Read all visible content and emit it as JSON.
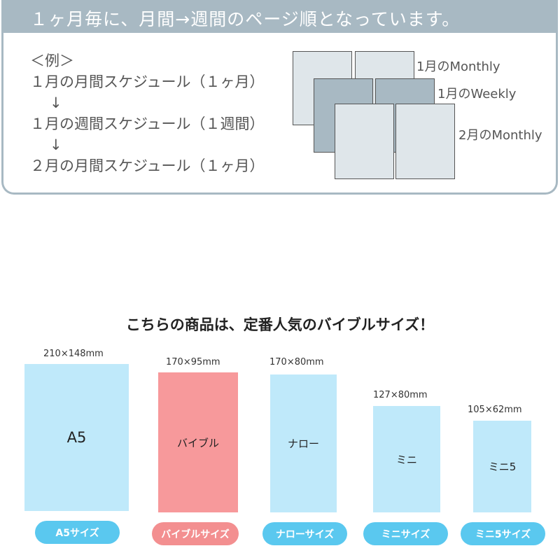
{
  "banner": {
    "text": "１ヶ月毎に、月間→週間のページ順となっています。"
  },
  "example": {
    "heading": "＜例＞",
    "lines": [
      "１月の月間スケジュール（１ヶ月）",
      "↓",
      "１月の週間スケジュール（１週間）",
      "↓",
      "２月の月間スケジュール（１ヶ月）"
    ]
  },
  "diagram": {
    "labels": [
      "1月のMonthly",
      "1月のWeekly",
      "2月のMonthly"
    ]
  },
  "sizes": {
    "title": "こちらの商品は、定番人気のバイブルサイズ！",
    "items": [
      {
        "dim": "210×148mm",
        "name": "A5",
        "pill": "A5サイズ"
      },
      {
        "dim": "170×95mm",
        "name": "バイブル",
        "pill": "バイブルサイズ"
      },
      {
        "dim": "170×80mm",
        "name": "ナロー",
        "pill": "ナローサイズ"
      },
      {
        "dim": "127×80mm",
        "name": "ミニ",
        "pill": "ミニサイズ"
      },
      {
        "dim": "105×62mm",
        "name": "ミニ5",
        "pill": "ミニ5サイズ"
      }
    ]
  },
  "colors": {
    "banner": "#a8b9c3",
    "card_light": "#dfe6ea",
    "card_dark": "#a8b9c3",
    "book_blue": "#bfe9fa",
    "book_pink": "#f7999b",
    "pill_blue": "#5ac8ef",
    "pill_pink": "#f38f90"
  }
}
